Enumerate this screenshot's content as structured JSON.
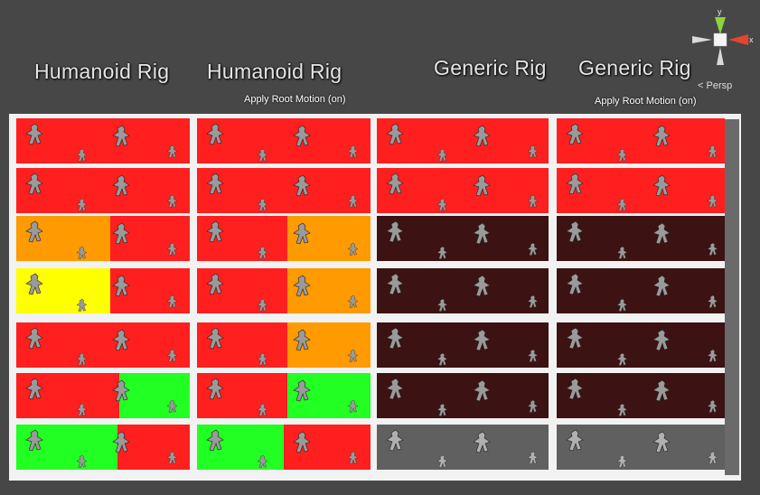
{
  "view": {
    "projection_label": "Persp",
    "axis_labels": {
      "y": "y",
      "x": "x"
    }
  },
  "columns": [
    {
      "title": "Humanoid Rig",
      "subtitle": ""
    },
    {
      "title": "Humanoid Rig",
      "subtitle": "Apply Root Motion (on)"
    },
    {
      "title": "Generic Rig",
      "subtitle": ""
    },
    {
      "title": "Generic Rig",
      "subtitle": "Apply Root Motion (on)"
    }
  ],
  "colors": {
    "red": "#ff1f1f",
    "orange": "#ff9a00",
    "yellow": "#ffff00",
    "green": "#22ff22",
    "dark": "#3d1212",
    "gray": "#606060",
    "frame": "#f2f2f2",
    "background": "#474747"
  },
  "grid": [
    [
      [
        "red"
      ],
      [
        "red"
      ],
      [
        "red"
      ],
      [
        "red"
      ]
    ],
    [
      [
        "red"
      ],
      [
        "red"
      ],
      [
        "red"
      ],
      [
        "red"
      ]
    ],
    [
      [
        "orange",
        "red"
      ],
      [
        "red",
        "orange"
      ],
      [
        "dark"
      ],
      [
        "dark"
      ]
    ],
    [
      [
        "yellow",
        "red"
      ],
      [
        "red",
        "orange"
      ],
      [
        "dark"
      ],
      [
        "dark"
      ]
    ],
    [
      [
        "red"
      ],
      [
        "red",
        "orange"
      ],
      [
        "dark"
      ],
      [
        "dark"
      ]
    ],
    [
      [
        "red",
        "green"
      ],
      [
        "red",
        "green"
      ],
      [
        "dark"
      ],
      [
        "dark"
      ]
    ],
    [
      [
        "green",
        "red"
      ],
      [
        "green",
        "red"
      ],
      [
        "gray"
      ],
      [
        "gray"
      ]
    ]
  ]
}
